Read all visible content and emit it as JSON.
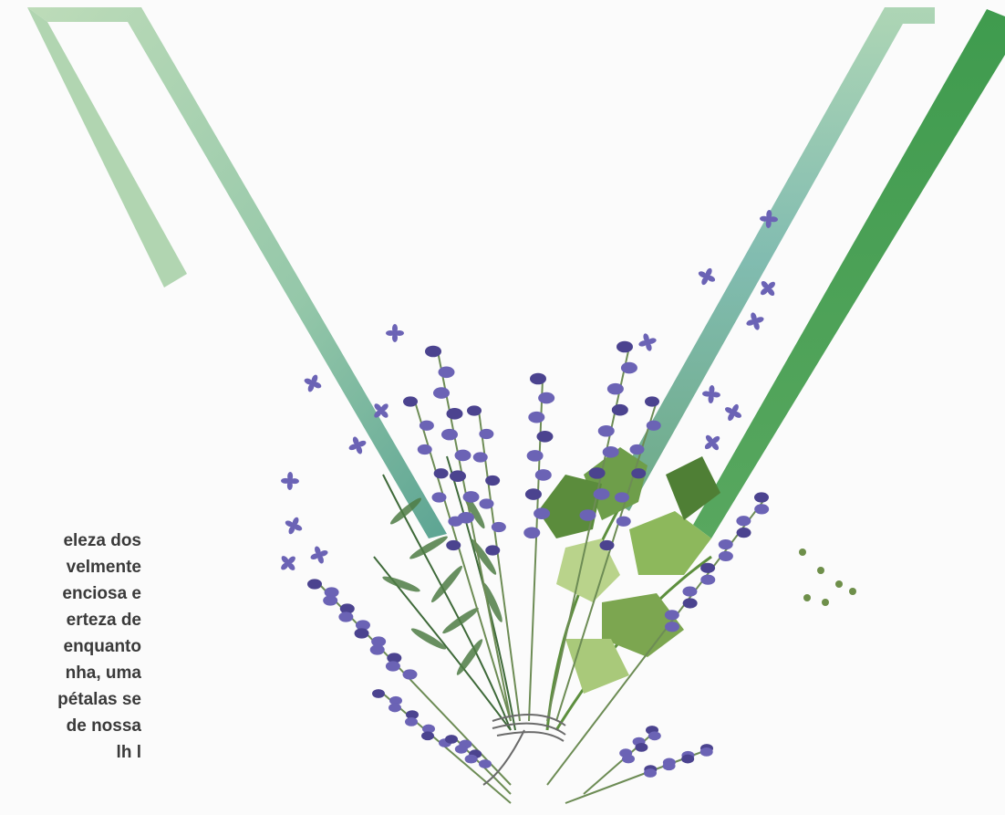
{
  "text_lines": [
    "eleza dos",
    "velmente",
    "enciosa e",
    "erteza de",
    "enquanto",
    "nha, uma",
    "pétalas se",
    "de nossa",
    "lh l"
  ],
  "colors": {
    "background": "#fbfbfb",
    "stroke_light_green": "#a7cfa5",
    "stroke_teal": "#6fb0a0",
    "stroke_dark_green": "#4f9a55",
    "lavender": "#6b63b5",
    "lavender_dark": "#4b438f",
    "leaf_green": "#6e9e4a",
    "leaf_light": "#b9d38b",
    "rosemary": "#3f6a3a",
    "text": "#3a3a3a"
  },
  "icons": [
    "lavender-sprig-icon",
    "rosemary-sprig-icon",
    "parsley-leaf-icon",
    "twine-knot-icon",
    "floating-petal-icon"
  ]
}
